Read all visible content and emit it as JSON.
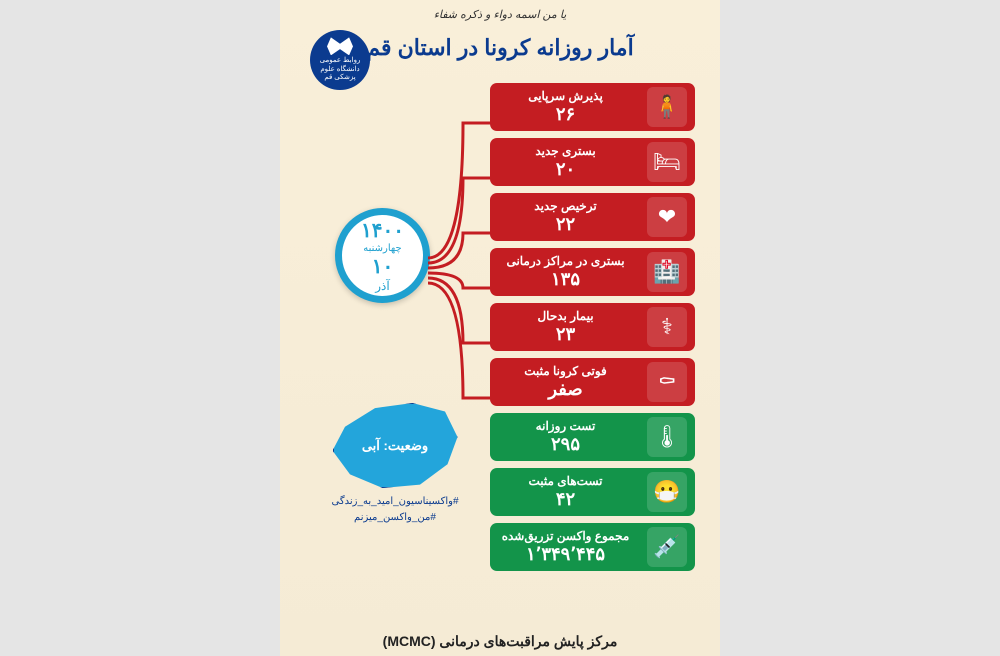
{
  "header": {
    "calligraphy": "یا من اسمه دواء و ذکره شفاء",
    "logo_line1": "روابط عمومی",
    "logo_line2": "دانشگاه علوم پزشکی قم",
    "title": "آمار روزانه کرونا در استان قم"
  },
  "date": {
    "year": "۱۴۰۰",
    "weekday": "چهارشنبه",
    "day": "۱۰",
    "month": "آذر"
  },
  "colors": {
    "red": "#c41d22",
    "green": "#13944a",
    "blue": "#1fa0cf",
    "navy": "#0b3b8f",
    "bg": "#f9efd9"
  },
  "stats": [
    {
      "label": "پذیرش سرپایی",
      "value": "۲۶",
      "color": "red",
      "icon": "🧍"
    },
    {
      "label": "بستری جدید",
      "value": "۲۰",
      "color": "red",
      "icon": "🛏"
    },
    {
      "label": "ترخیص جدید",
      "value": "۲۲",
      "color": "red",
      "icon": "❤"
    },
    {
      "label": "بستری در مراکز درمانی",
      "value": "۱۳۵",
      "color": "red",
      "icon": "🏥"
    },
    {
      "label": "بیمار بدحال",
      "value": "۲۳",
      "color": "red",
      "icon": "⚕"
    },
    {
      "label": "فوتی کرونا مثبت",
      "value": "صفر",
      "color": "red",
      "icon": "⚰"
    },
    {
      "label": "تست روزانه",
      "value": "۲۹۵",
      "color": "green",
      "icon": "🌡"
    },
    {
      "label": "تست‌های مثبت",
      "value": "۴۲",
      "color": "green",
      "icon": "😷"
    },
    {
      "label": "مجموع واکسن تزریق‌شده",
      "value": "۱٬۳۴۹٬۴۴۵",
      "color": "green",
      "icon": "💉"
    }
  ],
  "map": {
    "status_label": "وضعیت:",
    "status_value": "آبی",
    "hashtag1": "#واکسیناسیون_امید_به_زندگی",
    "hashtag2": "#من_واکسن_میزنم"
  },
  "footer": "مرکز پایش مراقبت‌های درمانی (MCMC)"
}
